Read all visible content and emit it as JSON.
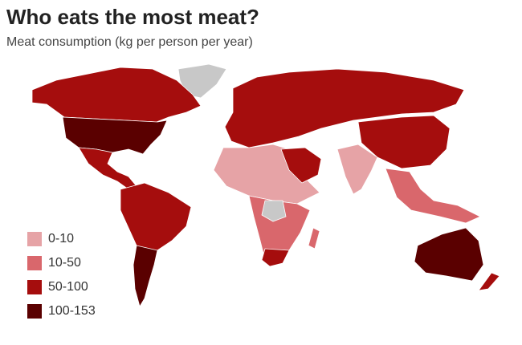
{
  "title": "Who eats the most meat?",
  "subtitle": "Meat consumption (kg per person per year)",
  "legend": [
    {
      "label": "0-10",
      "color": "#e6a3a6"
    },
    {
      "label": "10-50",
      "color": "#d9676c"
    },
    {
      "label": "50-100",
      "color": "#a50d0d"
    },
    {
      "label": "100-153",
      "color": "#5a0000"
    }
  ]
}
